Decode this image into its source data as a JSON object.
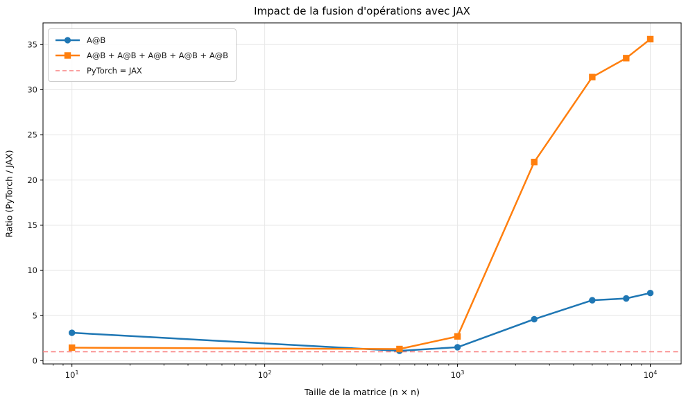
{
  "chart_data": {
    "type": "line",
    "title": "Impact de la fusion d'opérations avec JAX",
    "xlabel": "Taille de la matrice (n × n)",
    "ylabel": "Ratio (PyTorch / JAX)",
    "x_scale": "log",
    "x": [
      10,
      500,
      1000,
      2500,
      5000,
      7500,
      10000
    ],
    "series": [
      {
        "name": "A@B",
        "color": "#1f77b4",
        "marker": "circle",
        "values": [
          3.1,
          1.1,
          1.5,
          4.6,
          6.7,
          6.9,
          7.5
        ]
      },
      {
        "name": "A@B + A@B + A@B + A@B + A@B",
        "color": "#ff7f0e",
        "marker": "square",
        "values": [
          1.45,
          1.3,
          2.7,
          22.0,
          31.4,
          33.5,
          35.6
        ]
      }
    ],
    "reference_line": {
      "name": "PyTorch = JAX",
      "value": 1.0,
      "color": "#f98080",
      "style": "dashed"
    },
    "x_ticks": [
      10,
      100,
      1000,
      10000
    ],
    "x_tick_base": "10",
    "x_tick_exponents": [
      "1",
      "2",
      "3",
      "4"
    ],
    "y_ticks": [
      0,
      5,
      10,
      15,
      20,
      25,
      30,
      35
    ],
    "xlim_log10": [
      0.85,
      4.16
    ],
    "ylim": [
      -0.35,
      37.4
    ],
    "grid": "major",
    "legend_position": "upper-left",
    "colors": {
      "grid": "#e7e7e7",
      "spine": "#000000",
      "tick_text": "#1a1a1a"
    }
  }
}
